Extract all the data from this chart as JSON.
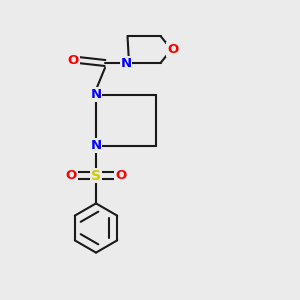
{
  "bg_color": "#ebebeb",
  "bond_color": "#1a1a1a",
  "N_color": "#0000ff",
  "O_color": "#ff0000",
  "S_color": "#cccc00",
  "bond_width": 1.5,
  "font_size": 9.5,
  "xlim": [
    0,
    10
  ],
  "ylim": [
    0,
    10
  ]
}
